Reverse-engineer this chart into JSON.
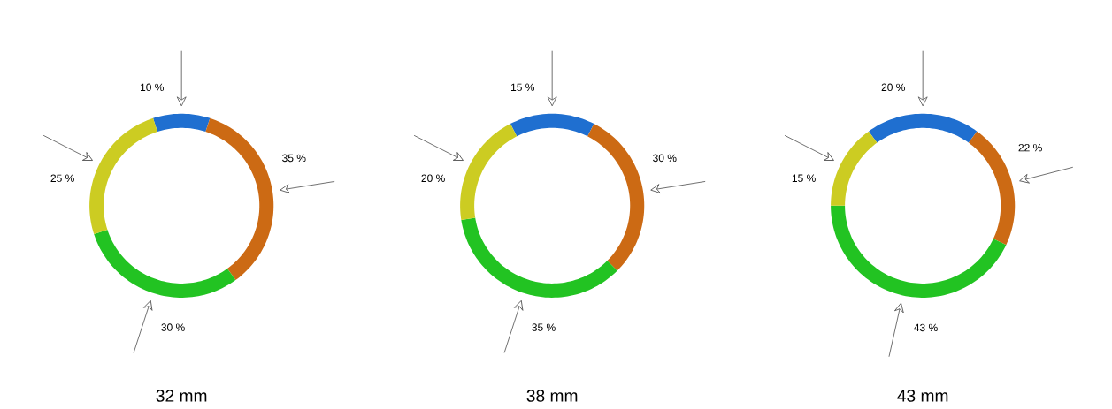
{
  "chart_data": [
    {
      "type": "donut",
      "xlabel": "32 mm",
      "categories": [
        null,
        null,
        null,
        null
      ],
      "values": [
        10,
        35,
        30,
        25
      ],
      "colors": [
        "#1f6fd0",
        "#cc6a14",
        "#22c322",
        "#cccc22"
      ],
      "value_labels": [
        "10 %",
        "35 %",
        "30 %",
        "25 %"
      ]
    },
    {
      "type": "donut",
      "xlabel": "38 mm",
      "categories": [
        null,
        null,
        null,
        null
      ],
      "values": [
        15,
        30,
        35,
        20
      ],
      "colors": [
        "#1f6fd0",
        "#cc6a14",
        "#22c322",
        "#cccc22"
      ],
      "value_labels": [
        "15 %",
        "30 %",
        "35 %",
        "20 %"
      ]
    },
    {
      "type": "donut",
      "xlabel": "43 mm",
      "categories": [
        null,
        null,
        null,
        null
      ],
      "values": [
        20,
        22,
        43,
        15
      ],
      "colors": [
        "#1f6fd0",
        "#cc6a14",
        "#22c322",
        "#cccc22"
      ],
      "value_labels": [
        "20 %",
        "22 %",
        "43 %",
        "15 %"
      ]
    }
  ]
}
